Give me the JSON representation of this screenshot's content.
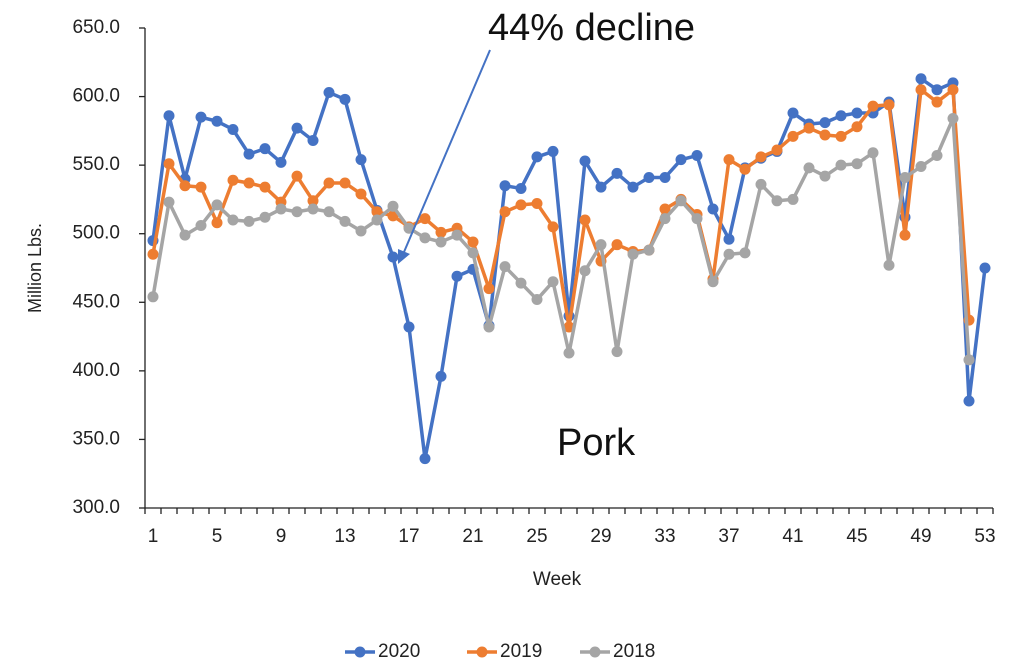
{
  "chart_data": {
    "type": "line",
    "x_label": "Week",
    "y_label": "Million Lbs.",
    "annotations": [
      "44% decline",
      "Pork"
    ],
    "categories": [
      1,
      null,
      null,
      null,
      5,
      null,
      null,
      null,
      9,
      null,
      null,
      null,
      13,
      null,
      null,
      null,
      17,
      null,
      null,
      null,
      21,
      null,
      null,
      null,
      25,
      null,
      null,
      null,
      29,
      null,
      null,
      null,
      33,
      null,
      null,
      null,
      37,
      null,
      null,
      null,
      41,
      null,
      null,
      null,
      45,
      null,
      null,
      null,
      49,
      null,
      null,
      null,
      53
    ],
    "ylim": [
      300,
      650
    ],
    "yticks": [
      {
        "value": 300,
        "label": "300.0"
      },
      {
        "value": 350,
        "label": "350.0"
      },
      {
        "value": 400,
        "label": "400.0"
      },
      {
        "value": 450,
        "label": "450.0"
      },
      {
        "value": 500,
        "label": "500.0"
      },
      {
        "value": 550,
        "label": "550.0"
      },
      {
        "value": 600,
        "label": "600.0"
      },
      {
        "value": 650,
        "label": "650.0"
      }
    ],
    "grid": false,
    "legend": "bottom",
    "series": [
      {
        "name": "2020",
        "color": "#4472c4",
        "values": [
          495,
          586,
          540,
          585,
          582,
          576,
          558,
          562,
          552,
          577,
          568,
          603,
          598,
          554,
          517,
          483,
          432,
          336,
          396,
          469,
          474,
          433,
          535,
          533,
          556,
          560,
          440,
          553,
          534,
          544,
          534,
          541,
          541,
          554,
          557,
          518,
          496,
          548,
          555,
          560,
          588,
          580,
          581,
          586,
          588,
          588,
          596,
          512,
          613,
          605,
          610,
          378,
          475
        ]
      },
      {
        "name": "2019",
        "color": "#ed7d31",
        "values": [
          485,
          551,
          535,
          534,
          508,
          539,
          537,
          534,
          523,
          542,
          524,
          537,
          537,
          529,
          516,
          513,
          505,
          511,
          501,
          504,
          494,
          460,
          516,
          521,
          522,
          505,
          432,
          510,
          480,
          492,
          487,
          488,
          518,
          525,
          514,
          467,
          554,
          547,
          556,
          561,
          571,
          577,
          572,
          571,
          578,
          593,
          594,
          499,
          605,
          596,
          605,
          437,
          null
        ]
      },
      {
        "name": "2018",
        "color": "#a5a5a5",
        "values": [
          454,
          523,
          499,
          506,
          521,
          510,
          509,
          512,
          518,
          516,
          518,
          516,
          509,
          502,
          510,
          520,
          504,
          497,
          494,
          499,
          486,
          432,
          476,
          464,
          452,
          465,
          413,
          473,
          492,
          414,
          485,
          488,
          511,
          524,
          511,
          465,
          485,
          486,
          536,
          524,
          525,
          548,
          542,
          550,
          551,
          559,
          477,
          541,
          549,
          557,
          584,
          408,
          null
        ]
      }
    ]
  }
}
